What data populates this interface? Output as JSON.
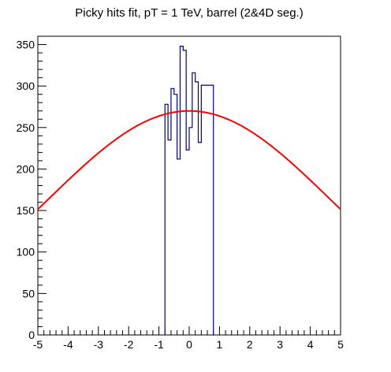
{
  "chart_data": {
    "type": "line",
    "title": "Picky hits fit, pT = 1 TeV, barrel (2&4D seg.)",
    "xlabel": "",
    "ylabel": "",
    "xlim": [
      -5,
      5
    ],
    "ylim": [
      0,
      360
    ],
    "x_ticks": [
      -5,
      -4,
      -3,
      -2,
      -1,
      0,
      1,
      2,
      3,
      4,
      5
    ],
    "y_ticks": [
      0,
      50,
      100,
      150,
      200,
      250,
      300,
      350
    ],
    "grid": false,
    "legend": "none",
    "histogram": {
      "color": "#000080",
      "bin_width": 0.1,
      "bins": [
        {
          "x0": -0.8,
          "value": 278
        },
        {
          "x0": -0.7,
          "value": 235
        },
        {
          "x0": -0.6,
          "value": 297
        },
        {
          "x0": -0.5,
          "value": 290
        },
        {
          "x0": -0.4,
          "value": 212
        },
        {
          "x0": -0.3,
          "value": 348
        },
        {
          "x0": -0.2,
          "value": 343
        },
        {
          "x0": -0.1,
          "value": 223
        },
        {
          "x0": 0.0,
          "value": 250
        },
        {
          "x0": 0.1,
          "value": 316
        },
        {
          "x0": 0.2,
          "value": 305
        },
        {
          "x0": 0.3,
          "value": 232
        },
        {
          "x0": 0.4,
          "value": 301
        }
      ],
      "extent": [
        -0.8,
        0.8
      ]
    },
    "fit": {
      "color": "#ff0000",
      "function": "gaussian",
      "amplitude": 270,
      "mean": 0,
      "sigma": 4.65
    }
  }
}
